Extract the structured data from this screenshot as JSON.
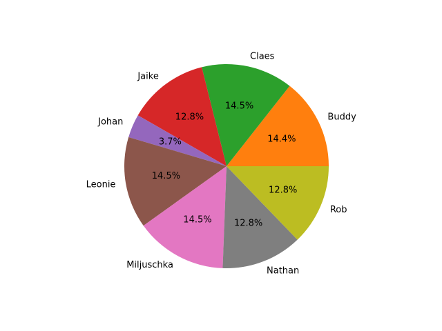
{
  "chart_data": {
    "type": "pie",
    "title": "",
    "start_angle_deg": 0,
    "direction": "counterclockwise",
    "slices": [
      {
        "label": "Buddy",
        "value": 14.4,
        "pct_label": "14.4%",
        "color": "#ff7f0e"
      },
      {
        "label": "Claes",
        "value": 14.5,
        "pct_label": "14.5%",
        "color": "#2ca02c"
      },
      {
        "label": "Jaike",
        "value": 12.8,
        "pct_label": "12.8%",
        "color": "#d62728"
      },
      {
        "label": "Johan",
        "value": 3.7,
        "pct_label": "3.7%",
        "color": "#9467bd"
      },
      {
        "label": "Leonie",
        "value": 14.5,
        "pct_label": "14.5%",
        "color": "#8c564b"
      },
      {
        "label": "Miljuschka",
        "value": 14.5,
        "pct_label": "14.5%",
        "color": "#e377c2"
      },
      {
        "label": "Nathan",
        "value": 12.8,
        "pct_label": "12.8%",
        "color": "#7f7f7f"
      },
      {
        "label": "Rob",
        "value": 12.8,
        "pct_label": "12.8%",
        "color": "#bcbd22"
      }
    ]
  }
}
